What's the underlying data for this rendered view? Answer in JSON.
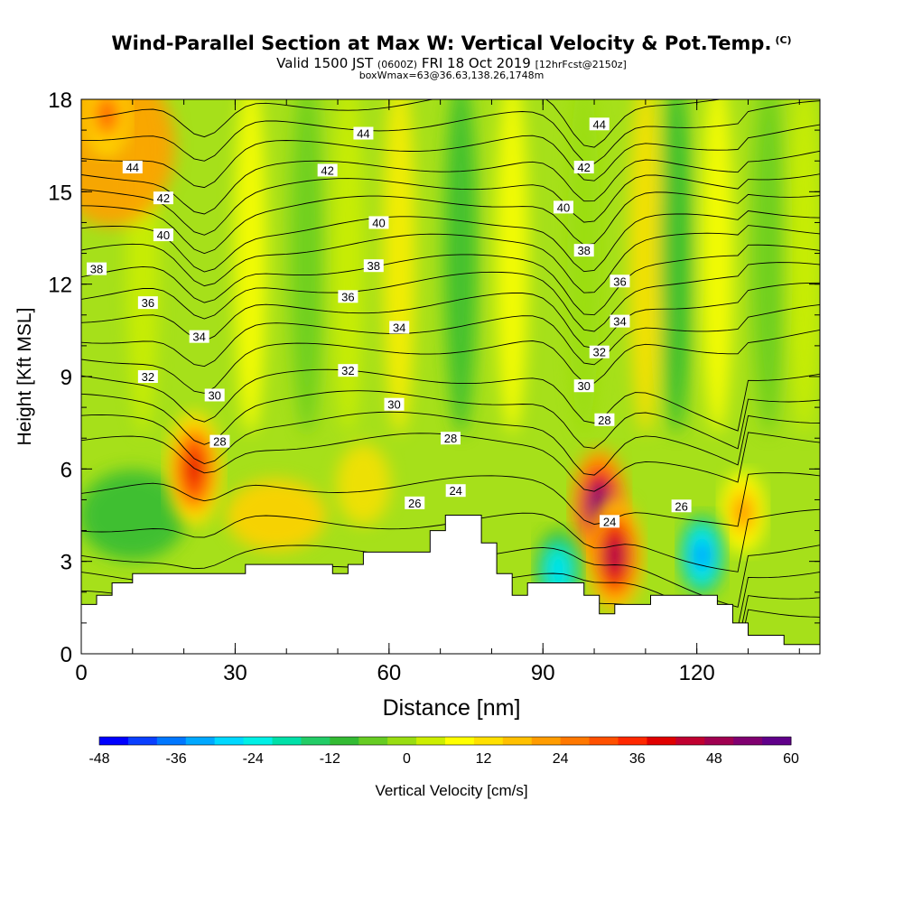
{
  "title": "Wind-Parallel Section at Max W: Vertical Velocity & Pot.Temp.",
  "copyright_mark": "(C)",
  "subtitle_valid": "Valid 1500 JST",
  "subtitle_utc": "(0600Z)",
  "subtitle_date": "FRI 18 Oct 2019",
  "subtitle_fcst": "[12hrFcst@2150z]",
  "subtitle2": "boxWmax=63@36.63,138.26,1748m",
  "chart_data": {
    "type": "heatmap",
    "xlabel": "Distance [nm]",
    "ylabel": "Height [Kft MSL]",
    "xlim": [
      0,
      144
    ],
    "ylim": [
      0,
      18
    ],
    "x_ticks": [
      "0",
      "30",
      "60",
      "90",
      "120"
    ],
    "y_ticks": [
      "0",
      "3",
      "6",
      "9",
      "12",
      "15",
      "18"
    ],
    "colorbar_label": "Vertical Velocity [cm/s]",
    "colorbar_ticks": [
      "-48",
      "-36",
      "-24",
      "-12",
      "0",
      "12",
      "24",
      "36",
      "48",
      "60"
    ],
    "colorbar_colors": [
      "#0000ff",
      "#0a3fff",
      "#0077ff",
      "#00a8ff",
      "#00d8ff",
      "#00f0e6",
      "#00e0a8",
      "#22cc66",
      "#33bb33",
      "#66cc22",
      "#99dd11",
      "#ccee00",
      "#ffff00",
      "#ffe000",
      "#ffc000",
      "#ff9c00",
      "#ff7800",
      "#ff5000",
      "#ff2800",
      "#e00000",
      "#c00030",
      "#a00050",
      "#800070",
      "#60008a"
    ],
    "theta_contour_labels": [
      {
        "text": "44",
        "x": 10,
        "y": 15.8
      },
      {
        "text": "44",
        "x": 55,
        "y": 16.9
      },
      {
        "text": "44",
        "x": 101,
        "y": 17.2
      },
      {
        "text": "42",
        "x": 16,
        "y": 14.8
      },
      {
        "text": "42",
        "x": 48,
        "y": 15.7
      },
      {
        "text": "42",
        "x": 98,
        "y": 15.8
      },
      {
        "text": "40",
        "x": 16,
        "y": 13.6
      },
      {
        "text": "40",
        "x": 58,
        "y": 14.0
      },
      {
        "text": "40",
        "x": 94,
        "y": 14.5
      },
      {
        "text": "38",
        "x": 3,
        "y": 12.5
      },
      {
        "text": "38",
        "x": 57,
        "y": 12.6
      },
      {
        "text": "38",
        "x": 98,
        "y": 13.1
      },
      {
        "text": "36",
        "x": 13,
        "y": 11.4
      },
      {
        "text": "36",
        "x": 52,
        "y": 11.6
      },
      {
        "text": "36",
        "x": 105,
        "y": 12.1
      },
      {
        "text": "34",
        "x": 23,
        "y": 10.3
      },
      {
        "text": "34",
        "x": 62,
        "y": 10.6
      },
      {
        "text": "34",
        "x": 105,
        "y": 10.8
      },
      {
        "text": "32",
        "x": 13,
        "y": 9.0
      },
      {
        "text": "32",
        "x": 52,
        "y": 9.2
      },
      {
        "text": "32",
        "x": 101,
        "y": 9.8
      },
      {
        "text": "30",
        "x": 26,
        "y": 8.4
      },
      {
        "text": "30",
        "x": 61,
        "y": 8.1
      },
      {
        "text": "30",
        "x": 98,
        "y": 8.7
      },
      {
        "text": "28",
        "x": 27,
        "y": 6.9
      },
      {
        "text": "28",
        "x": 72,
        "y": 7.0
      },
      {
        "text": "28",
        "x": 102,
        "y": 7.6
      },
      {
        "text": "26",
        "x": 65,
        "y": 4.9
      },
      {
        "text": "26",
        "x": 117,
        "y": 4.8
      },
      {
        "text": "24",
        "x": 73,
        "y": 5.3
      },
      {
        "text": "24",
        "x": 103,
        "y": 4.3
      }
    ],
    "terrain": [
      [
        0,
        1.6
      ],
      [
        3,
        1.6
      ],
      [
        3,
        1.9
      ],
      [
        6,
        1.9
      ],
      [
        6,
        2.3
      ],
      [
        10,
        2.3
      ],
      [
        10,
        2.6
      ],
      [
        32,
        2.6
      ],
      [
        32,
        2.9
      ],
      [
        49,
        2.9
      ],
      [
        49,
        2.6
      ],
      [
        52,
        2.6
      ],
      [
        52,
        2.9
      ],
      [
        55,
        2.9
      ],
      [
        55,
        3.3
      ],
      [
        68,
        3.3
      ],
      [
        68,
        4.0
      ],
      [
        71,
        4.0
      ],
      [
        71,
        4.5
      ],
      [
        78,
        4.5
      ],
      [
        78,
        3.6
      ],
      [
        81,
        3.6
      ],
      [
        81,
        2.6
      ],
      [
        84,
        2.6
      ],
      [
        84,
        1.9
      ],
      [
        87,
        1.9
      ],
      [
        87,
        2.3
      ],
      [
        98,
        2.3
      ],
      [
        98,
        1.9
      ],
      [
        101,
        1.9
      ],
      [
        101,
        1.3
      ],
      [
        104,
        1.3
      ],
      [
        104,
        1.6
      ],
      [
        111,
        1.6
      ],
      [
        111,
        1.9
      ],
      [
        124,
        1.9
      ],
      [
        124,
        1.6
      ],
      [
        127,
        1.6
      ],
      [
        127,
        1.0
      ],
      [
        130,
        1.0
      ],
      [
        130,
        0.6
      ],
      [
        137,
        0.6
      ],
      [
        137,
        0.3
      ],
      [
        144,
        0.3
      ]
    ],
    "updraft_cores": [
      {
        "x": 22,
        "y": 6.0,
        "value": 40
      },
      {
        "x": 101,
        "y": 4.8,
        "value": 60
      },
      {
        "x": 104,
        "y": 3.2,
        "value": 48
      },
      {
        "x": 129,
        "y": 4.6,
        "value": 24
      },
      {
        "x": 5,
        "y": 17.5,
        "value": 30
      }
    ],
    "downdraft_cores": [
      {
        "x": 93,
        "y": 2.7,
        "value": -30
      },
      {
        "x": 121,
        "y": 3.2,
        "value": -36
      }
    ]
  }
}
